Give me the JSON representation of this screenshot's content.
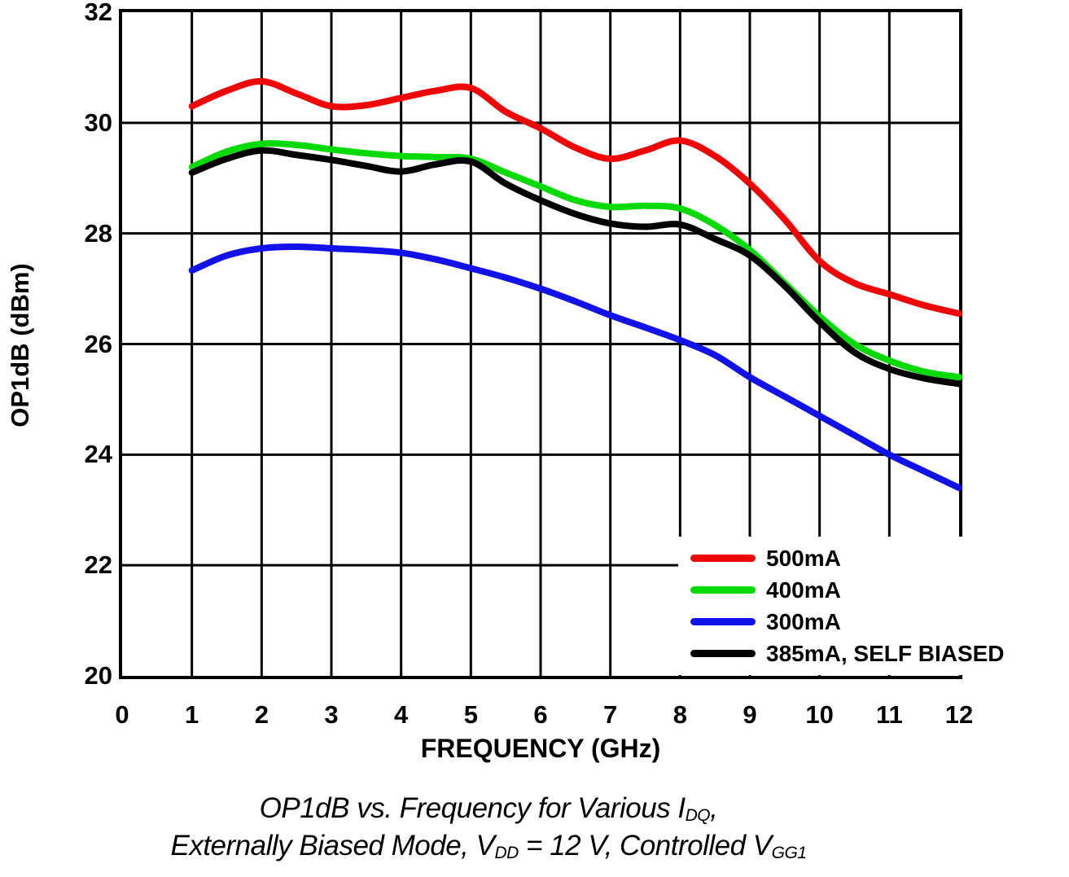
{
  "chart_data": {
    "type": "line",
    "title": "",
    "xlabel": "FREQUENCY (GHz)",
    "ylabel": "OP1dB (dBm)",
    "xlim": [
      0,
      12
    ],
    "ylim": [
      20,
      32
    ],
    "x_ticks": [
      0,
      1,
      2,
      3,
      4,
      5,
      6,
      7,
      8,
      9,
      10,
      11,
      12
    ],
    "y_ticks": [
      20,
      22,
      24,
      26,
      28,
      30,
      32
    ],
    "grid": "major gridlines, black, every 1 GHz and 2 dB",
    "legend_position": "inside-bottom-right",
    "x": [
      1,
      1.5,
      2,
      2.5,
      3,
      3.5,
      4,
      4.5,
      5,
      5.5,
      6,
      6.5,
      7,
      7.5,
      8,
      8.5,
      9,
      9.5,
      10,
      10.5,
      11,
      11.5,
      12
    ],
    "series": [
      {
        "name": "500mA",
        "color": "#f00506",
        "values": [
          30.3,
          30.58,
          30.75,
          30.53,
          30.3,
          30.32,
          30.45,
          30.58,
          30.63,
          30.2,
          29.9,
          29.55,
          29.35,
          29.5,
          29.68,
          29.4,
          28.9,
          28.25,
          27.5,
          27.1,
          26.9,
          26.7,
          26.55
        ]
      },
      {
        "name": "400mA",
        "color": "#06da06",
        "values": [
          29.2,
          29.48,
          29.62,
          29.6,
          29.52,
          29.45,
          29.4,
          29.38,
          29.35,
          29.1,
          28.85,
          28.6,
          28.48,
          28.5,
          28.45,
          28.15,
          27.7,
          27.1,
          26.5,
          26.0,
          25.7,
          25.5,
          25.4
        ]
      },
      {
        "name": "300mA",
        "color": "#1212e8",
        "values": [
          27.33,
          27.6,
          27.73,
          27.76,
          27.73,
          27.7,
          27.65,
          27.53,
          27.37,
          27.2,
          27.0,
          26.77,
          26.52,
          26.3,
          26.07,
          25.8,
          25.4,
          25.05,
          24.7,
          24.35,
          24.0,
          23.7,
          23.4
        ]
      },
      {
        "name": "385mA, SELF BIASED",
        "color": "#000000",
        "values": [
          29.1,
          29.35,
          29.5,
          29.42,
          29.33,
          29.22,
          29.12,
          29.25,
          29.3,
          28.9,
          28.6,
          28.35,
          28.18,
          28.12,
          28.16,
          27.9,
          27.6,
          27.05,
          26.4,
          25.85,
          25.55,
          25.38,
          25.28
        ]
      }
    ]
  },
  "caption": {
    "line1": [
      {
        "t": "OP1dB vs. Frequency for Various I"
      },
      {
        "t": "DQ",
        "sub": true
      },
      {
        "t": ","
      }
    ],
    "line2": [
      {
        "t": "Externally Biased Mode, V"
      },
      {
        "t": "DD",
        "sub": true
      },
      {
        "t": " = 12 V, Controlled V"
      },
      {
        "t": "GG1",
        "sub": true
      }
    ]
  }
}
